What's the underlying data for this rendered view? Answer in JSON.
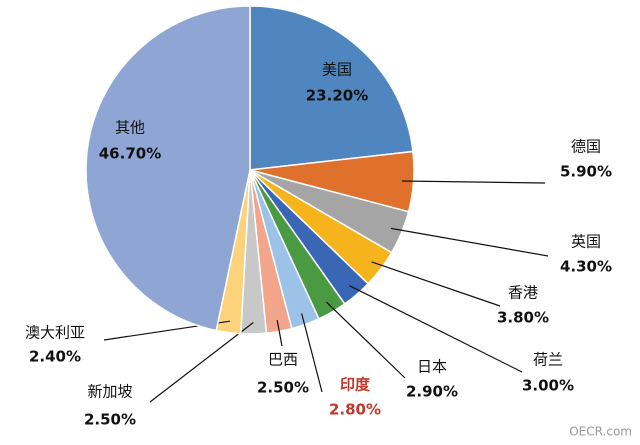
{
  "chart_data": {
    "type": "pie",
    "categories": [
      "美国",
      "德国",
      "英国",
      "香港",
      "荷兰",
      "日本",
      "印度",
      "巴西",
      "新加坡",
      "澳大利亚",
      "其他"
    ],
    "values": [
      23.2,
      5.9,
      4.3,
      3.8,
      3.0,
      2.9,
      2.8,
      2.5,
      2.5,
      2.4,
      46.7
    ],
    "value_labels": [
      "23.20%",
      "5.90%",
      "4.30%",
      "3.80%",
      "3.00%",
      "2.90%",
      "2.80%",
      "2.50%",
      "2.50%",
      "2.40%",
      "46.70%"
    ],
    "colors": [
      "#4f86c0",
      "#e0712d",
      "#a5a5a5",
      "#f5b41b",
      "#3a67b5",
      "#4a9a43",
      "#9cc2e8",
      "#f2a58a",
      "#c8c8c8",
      "#fcd27a",
      "#8fa6d4"
    ],
    "watermark": "OECR.com"
  }
}
